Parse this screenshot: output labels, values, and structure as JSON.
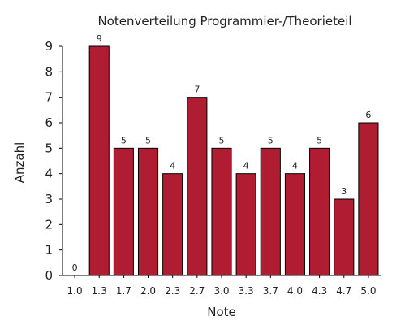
{
  "chart_data": {
    "type": "bar",
    "title": "Notenverteilung Programmier-/Theorieteil",
    "xlabel": "Note",
    "ylabel": "Anzahl",
    "categories": [
      "1.0",
      "1.3",
      "1.7",
      "2.0",
      "2.3",
      "2.7",
      "3.0",
      "3.3",
      "3.7",
      "4.0",
      "4.3",
      "4.7",
      "5.0"
    ],
    "values": [
      0,
      9,
      5,
      5,
      4,
      7,
      5,
      4,
      5,
      4,
      5,
      3,
      6
    ],
    "data_labels": [
      "0",
      "9",
      "5",
      "5",
      "4",
      "7",
      "5",
      "4",
      "5",
      "4",
      "5",
      "3",
      "6"
    ],
    "yticks": [
      "0",
      "1",
      "2",
      "3",
      "4",
      "5",
      "6",
      "7",
      "8",
      "9"
    ],
    "ylim": [
      0,
      9
    ],
    "bar_color": "#b01c31",
    "grid": false,
    "legend": "none"
  }
}
